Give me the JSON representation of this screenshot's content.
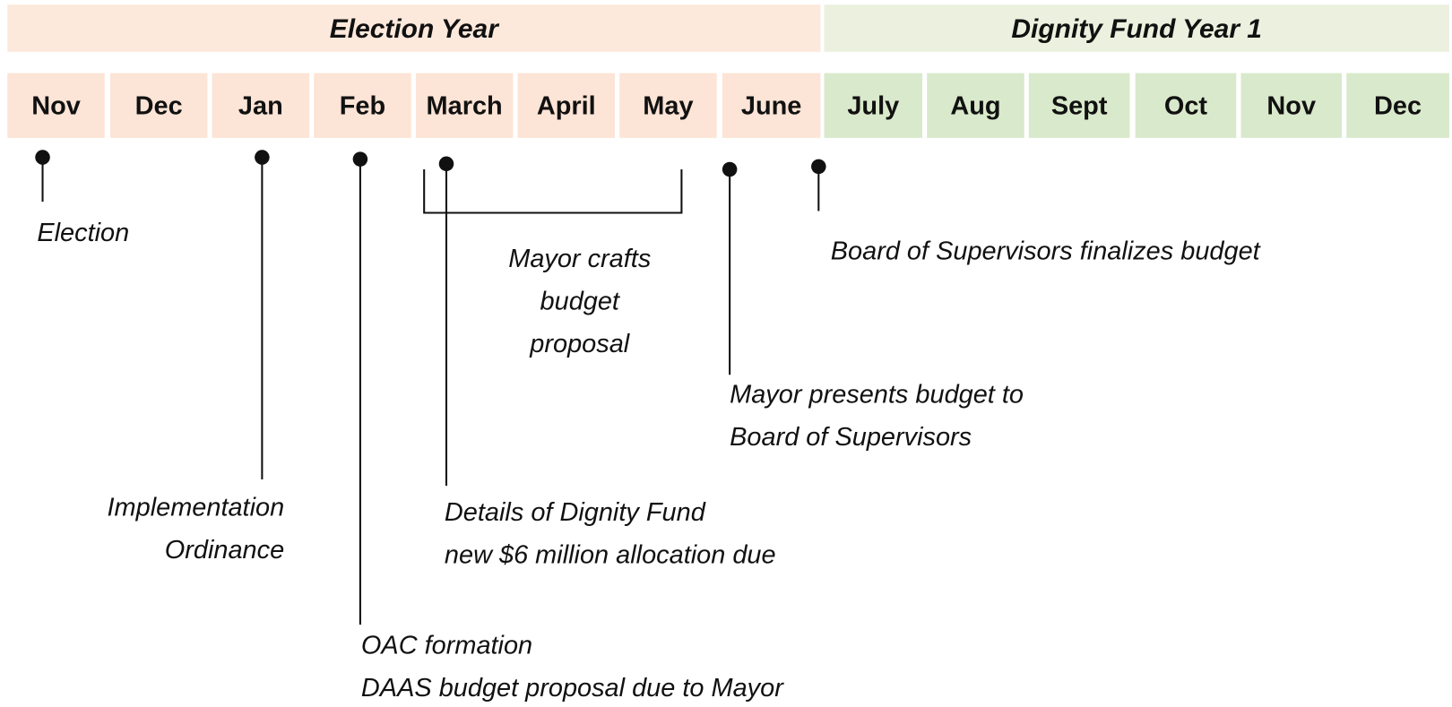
{
  "headers": [
    {
      "label": "Election Year"
    },
    {
      "label": "Dignity Fund Year 1"
    }
  ],
  "months": [
    "Nov",
    "Dec",
    "Jan",
    "Feb",
    "March",
    "April",
    "May",
    "June",
    "July",
    "Aug",
    "Sept",
    "Oct",
    "Nov",
    "Dec"
  ],
  "events": [
    {
      "lines": [
        "Election"
      ]
    },
    {
      "lines": [
        "Implementation",
        "Ordinance"
      ]
    },
    {
      "lines": [
        "OAC formation",
        "DAAS  budget proposal due to Mayor"
      ]
    },
    {
      "lines": [
        "Details of Dignity Fund",
        "new $6 million allocation due"
      ]
    },
    {
      "lines": [
        "Mayor  crafts",
        "budget",
        "proposal"
      ]
    },
    {
      "lines": [
        "Mayor  presents budget to",
        " Board of Supervisors"
      ]
    },
    {
      "lines": [
        "Board of Supervisors finalizes budget"
      ]
    }
  ]
}
